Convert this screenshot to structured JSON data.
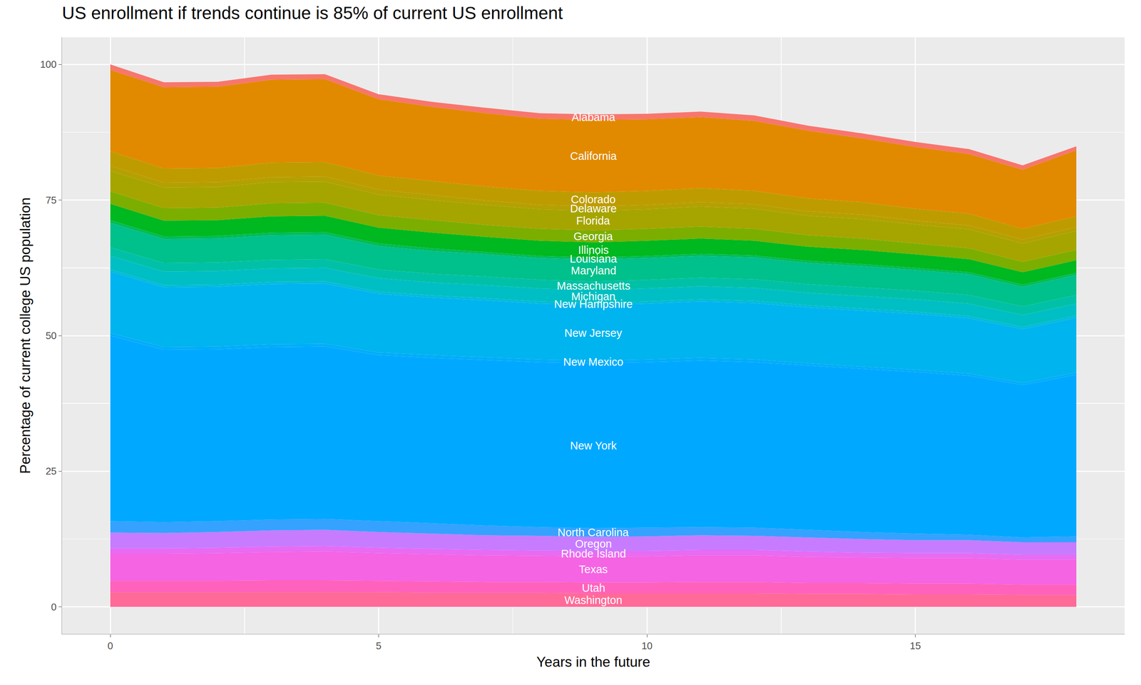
{
  "chart_data": {
    "type": "area",
    "title": "US enrollment if trends continue is 85% of current US enrollment",
    "x_label": "Years in the future",
    "y_label": "Percentage of current college US population",
    "stacked": true,
    "grid": true,
    "x": [
      0,
      1,
      2,
      3,
      4,
      5,
      6,
      7,
      8,
      9,
      10,
      11,
      12,
      13,
      14,
      15,
      16,
      17,
      18
    ],
    "xlim": [
      -0.9,
      18.9
    ],
    "xticks": [
      0,
      5,
      10,
      15
    ],
    "ylim": [
      -5,
      105
    ],
    "yticks": [
      0,
      25,
      50,
      75,
      100
    ],
    "series": [
      {
        "name": "Alabama",
        "color": "#F8766D",
        "values": [
          1.0,
          0.9,
          0.9,
          0.9,
          0.9,
          0.9,
          0.9,
          1.0,
          1.0,
          1.0,
          1.0,
          1.0,
          1.0,
          0.9,
          0.9,
          0.9,
          0.9,
          0.8,
          0.7
        ]
      },
      {
        "name": "California",
        "color": "#E18A00",
        "values": [
          15.0,
          15.0,
          15.0,
          15.3,
          15.3,
          14.1,
          13.7,
          13.5,
          13.3,
          13.4,
          13.2,
          13.1,
          12.9,
          12.5,
          11.8,
          11.4,
          11.0,
          10.9,
          12.2
        ]
      },
      {
        "name": "Colorado",
        "color": "#BE9C00",
        "values": [
          2.7,
          2.6,
          2.6,
          2.7,
          2.7,
          2.6,
          2.6,
          2.6,
          2.6,
          2.6,
          2.6,
          2.6,
          2.5,
          2.4,
          2.3,
          2.2,
          2.2,
          2.0,
          2.0
        ]
      },
      {
        "name": "Delaware",
        "color": "#B4A000",
        "values": [
          0.9,
          0.9,
          0.9,
          0.9,
          0.9,
          0.9,
          0.9,
          0.8,
          0.8,
          0.8,
          0.8,
          0.8,
          0.8,
          0.8,
          0.8,
          0.7,
          0.7,
          0.7,
          0.7
        ]
      },
      {
        "name": "Florida",
        "color": "#A6A500",
        "values": [
          3.8,
          3.8,
          3.8,
          3.9,
          3.9,
          3.8,
          3.7,
          3.7,
          3.6,
          3.6,
          3.6,
          3.7,
          3.7,
          3.6,
          3.6,
          3.5,
          3.5,
          3.4,
          3.5
        ]
      },
      {
        "name": "Georgia",
        "color": "#7CAE00",
        "values": [
          2.3,
          2.3,
          2.3,
          2.4,
          2.4,
          2.3,
          2.3,
          2.2,
          2.2,
          2.2,
          2.2,
          2.2,
          2.2,
          2.1,
          2.1,
          2.0,
          2.0,
          1.9,
          1.9
        ]
      },
      {
        "name": "Illinois",
        "color": "#00B81F",
        "values": [
          3.0,
          2.9,
          2.9,
          3.0,
          3.0,
          2.9,
          2.9,
          2.8,
          2.8,
          2.8,
          2.8,
          2.8,
          2.7,
          2.6,
          2.6,
          2.5,
          2.4,
          2.3,
          2.3
        ]
      },
      {
        "name": "Louisiana",
        "color": "#00BC59",
        "values": [
          0.5,
          0.5,
          0.5,
          0.5,
          0.5,
          0.5,
          0.5,
          0.4,
          0.4,
          0.4,
          0.4,
          0.4,
          0.4,
          0.4,
          0.4,
          0.4,
          0.4,
          0.4,
          0.4
        ]
      },
      {
        "name": "Maryland",
        "color": "#00C08B",
        "values": [
          4.5,
          4.4,
          4.4,
          4.5,
          4.5,
          4.3,
          4.2,
          4.1,
          4.0,
          4.0,
          4.0,
          4.0,
          4.0,
          3.9,
          3.9,
          3.8,
          3.8,
          3.6,
          3.7
        ]
      },
      {
        "name": "Massachusetts",
        "color": "#00C1A7",
        "values": [
          1.6,
          1.6,
          1.6,
          1.6,
          1.6,
          1.6,
          1.6,
          1.6,
          1.6,
          1.6,
          1.6,
          1.6,
          1.6,
          1.6,
          1.6,
          1.6,
          1.6,
          1.6,
          1.6
        ]
      },
      {
        "name": "Michigan",
        "color": "#00BFC4",
        "values": [
          2.5,
          2.5,
          2.5,
          2.5,
          2.5,
          2.5,
          2.4,
          2.4,
          2.4,
          2.4,
          2.4,
          2.4,
          2.4,
          2.3,
          2.3,
          2.3,
          2.3,
          2.2,
          2.2
        ]
      },
      {
        "name": "New Hampshire",
        "color": "#00BBDB",
        "values": [
          0.4,
          0.4,
          0.4,
          0.4,
          0.4,
          0.4,
          0.4,
          0.4,
          0.4,
          0.4,
          0.4,
          0.4,
          0.4,
          0.4,
          0.4,
          0.4,
          0.4,
          0.4,
          0.4
        ]
      },
      {
        "name": "New Jersey",
        "color": "#00B4EF",
        "values": [
          11.3,
          11.0,
          11.0,
          11.1,
          11.1,
          10.8,
          10.6,
          10.5,
          10.3,
          10.2,
          10.3,
          10.4,
          10.4,
          10.3,
          10.3,
          10.3,
          10.2,
          9.9,
          10.1
        ]
      },
      {
        "name": "New Mexico",
        "color": "#00ADFA",
        "values": [
          0.5,
          0.5,
          0.5,
          0.5,
          0.5,
          0.5,
          0.5,
          0.5,
          0.5,
          0.5,
          0.5,
          0.5,
          0.5,
          0.4,
          0.4,
          0.4,
          0.4,
          0.4,
          0.4
        ]
      },
      {
        "name": "New York",
        "color": "#00A9FF",
        "values": [
          34.2,
          31.8,
          31.7,
          31.8,
          31.8,
          30.6,
          30.5,
          30.5,
          30.4,
          30.4,
          30.5,
          30.7,
          30.5,
          30.3,
          30.1,
          29.8,
          29.3,
          28.1,
          29.8
        ]
      },
      {
        "name": "North Carolina",
        "color": "#35A2FF",
        "values": [
          2.1,
          2.0,
          2.0,
          2.0,
          2.0,
          2.0,
          1.9,
          1.8,
          1.6,
          1.6,
          1.6,
          1.5,
          1.5,
          1.4,
          1.3,
          1.2,
          1.0,
          0.9,
          1.1
        ]
      },
      {
        "name": "Oregon",
        "color": "#C77CFF",
        "values": [
          2.9,
          2.8,
          2.9,
          3.0,
          3.0,
          2.9,
          2.8,
          2.7,
          2.7,
          2.6,
          2.7,
          2.7,
          2.6,
          2.6,
          2.5,
          2.4,
          2.4,
          2.3,
          2.3
        ]
      },
      {
        "name": "Rhode Island",
        "color": "#E76BF3",
        "values": [
          1.0,
          1.0,
          1.0,
          1.0,
          1.0,
          1.0,
          1.0,
          1.0,
          1.0,
          1.0,
          1.0,
          1.0,
          1.0,
          1.0,
          0.9,
          0.9,
          0.9,
          0.9,
          0.9
        ]
      },
      {
        "name": "Texas",
        "color": "#F564E3",
        "values": [
          5.0,
          5.0,
          5.1,
          5.2,
          5.3,
          5.1,
          5.0,
          4.9,
          4.8,
          4.8,
          4.8,
          4.9,
          4.9,
          4.8,
          4.7,
          4.7,
          4.7,
          4.6,
          4.6
        ]
      },
      {
        "name": "Utah",
        "color": "#FF62BC",
        "values": [
          2.1,
          2.1,
          2.1,
          2.2,
          2.2,
          2.1,
          2.1,
          2.0,
          2.0,
          2.0,
          2.0,
          2.1,
          2.1,
          2.0,
          2.0,
          2.0,
          2.0,
          1.9,
          1.9
        ]
      },
      {
        "name": "Washington",
        "color": "#FF6A98",
        "values": [
          2.7,
          2.7,
          2.7,
          2.7,
          2.7,
          2.7,
          2.6,
          2.6,
          2.6,
          2.5,
          2.5,
          2.5,
          2.5,
          2.4,
          2.4,
          2.3,
          2.3,
          2.2,
          2.2
        ]
      }
    ]
  }
}
